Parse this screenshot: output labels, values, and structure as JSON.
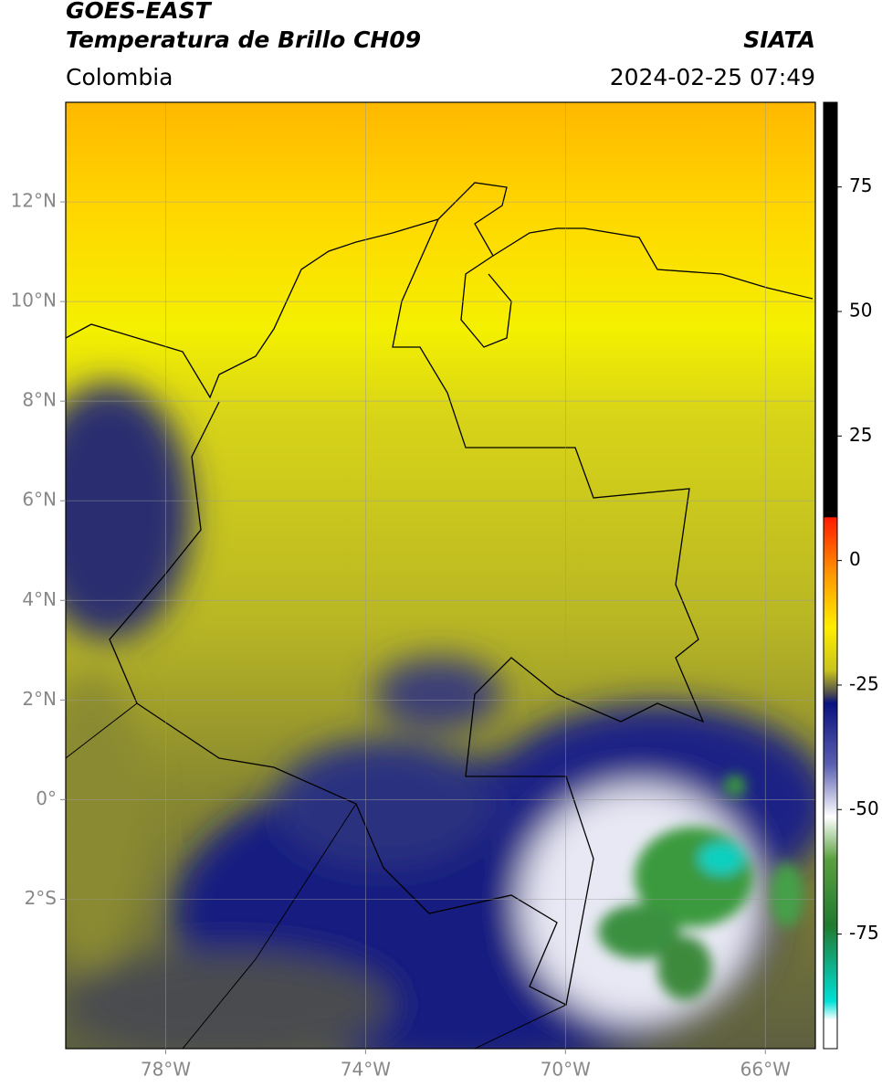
{
  "header": {
    "title": "GOES-EAST",
    "subtitle": "Temperatura de Brillo CH09",
    "source": "SIATA",
    "region": "Colombia",
    "datetime": "2024-02-25 07:49"
  },
  "map": {
    "xlim": [
      -80,
      -65
    ],
    "ylim": [
      -5,
      14
    ],
    "xticks": [
      {
        "value": -78,
        "label": "78°W"
      },
      {
        "value": -74,
        "label": "74°W"
      },
      {
        "value": -70,
        "label": "70°W"
      },
      {
        "value": -66,
        "label": "66°W"
      }
    ],
    "yticks": [
      {
        "value": 12,
        "label": "12°N"
      },
      {
        "value": 10,
        "label": "10°N"
      },
      {
        "value": 8,
        "label": "8°N"
      },
      {
        "value": 6,
        "label": "6°N"
      },
      {
        "value": 4,
        "label": "4°N"
      },
      {
        "value": 2,
        "label": "2°N"
      },
      {
        "value": 0,
        "label": "0°"
      },
      {
        "value": -2,
        "label": "2°S"
      }
    ],
    "grid": true
  },
  "colorbar": {
    "lim": [
      -98,
      92
    ],
    "ticks": [
      75,
      50,
      25,
      0,
      -25,
      -50,
      -75
    ]
  }
}
